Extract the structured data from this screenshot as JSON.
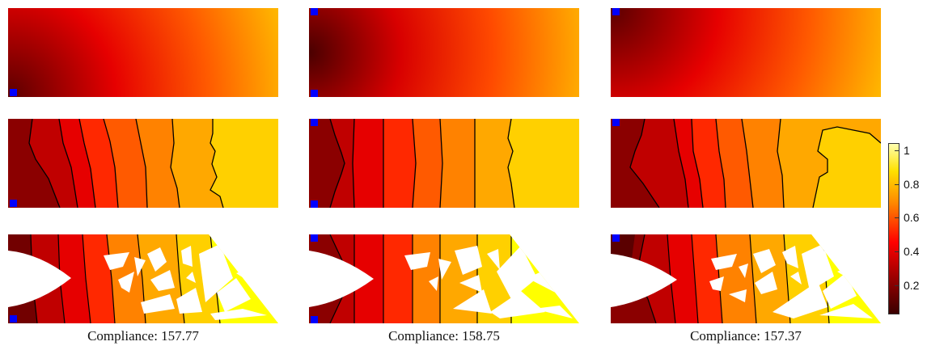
{
  "captions": [
    "Compliance: 157.77",
    "Compliance: 158.75",
    "Compliance: 157.37"
  ],
  "colorbar": {
    "ticks": [
      "1",
      "0.8",
      "0.6",
      "0.4",
      "0.2"
    ],
    "colors": [
      "#3a0000",
      "#8b0000",
      "#ff0000",
      "#ff8c00",
      "#ffe000",
      "#ffffb0"
    ]
  },
  "marker_color": "#0000ff",
  "contour_color": "#000000"
}
